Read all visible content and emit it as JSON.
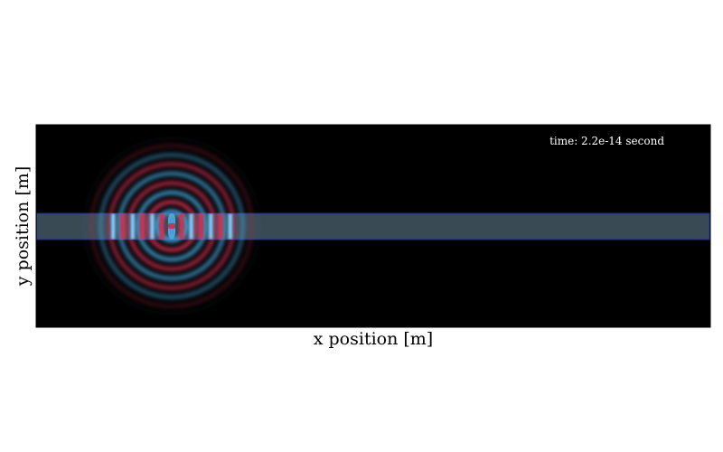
{
  "chart_data": {
    "type": "heatmap",
    "title": "",
    "xlabel": "x position [m]",
    "ylabel": "y position [m]",
    "annotation": "time: 2.2e-14 second",
    "grid": false,
    "legend": "none",
    "colors": {
      "background": "#000000",
      "positive_field": "#cc3355",
      "negative_field": "#4aa8e0",
      "waveguide_fill": "#3a4a55",
      "waveguide_edge": "#1a2a9a",
      "axes_frame": "#000000"
    }
  }
}
